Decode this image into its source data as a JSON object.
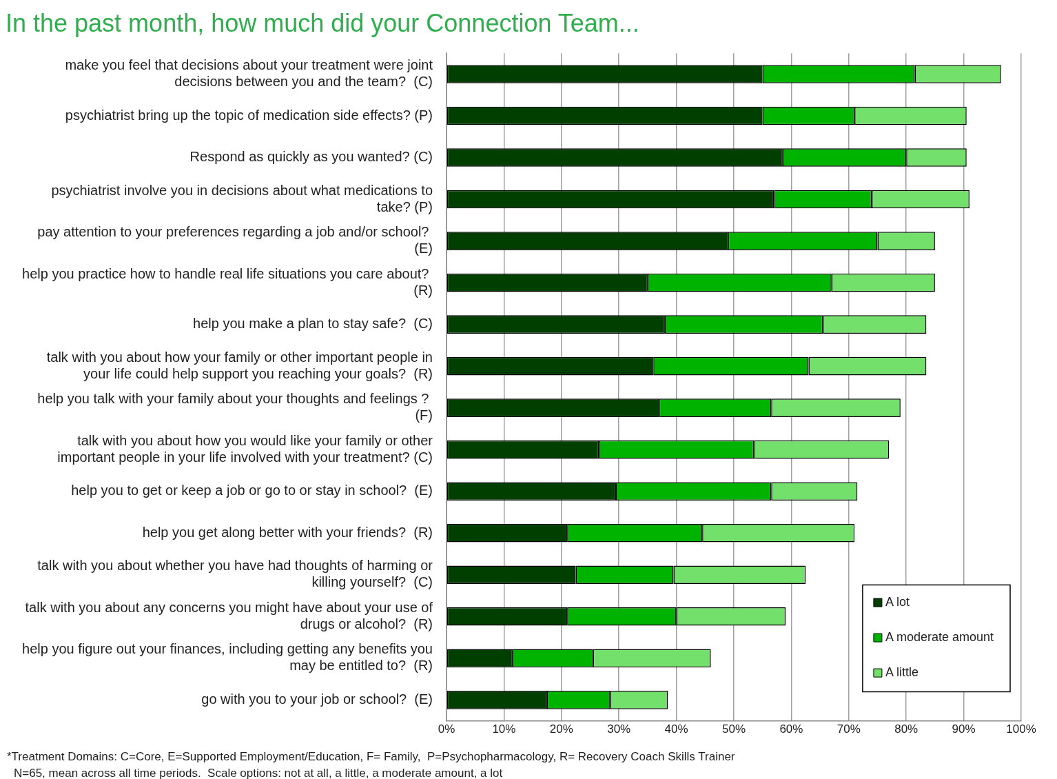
{
  "chart_data": {
    "type": "bar",
    "orientation": "horizontal",
    "stacked": true,
    "title": "In the past month, how much did your Connection Team...",
    "categories": [
      "make you feel that decisions about your treatment were joint decisions between you and the team?  (C)",
      "psychiatrist bring up the topic of medication side effects? (P)",
      "Respond as quickly as you wanted? (C)",
      "psychiatrist involve you in decisions about what medications to take? (P)",
      "pay attention to your preferences regarding a job and/or school?  (E)",
      "help you practice how to handle real life situations you care about?  (R)",
      "help you make a plan to stay safe?  (C)",
      "talk with you about how your family or other important people in your life could help support you reaching your goals?  (R)",
      "help you talk with your family about your thoughts and feelings ?  (F)",
      "talk with you about how you would like your family or other important people in your life involved with your treatment? (C)",
      "help you to get or keep a job or go to or stay in school?  (E)",
      "help you get along better with your friends?  (R)",
      "talk with you about whether you have had thoughts of harming or killing yourself?  (C)",
      "talk with you about any concerns you might have about your use of drugs or alcohol?  (R)",
      "help you figure out your finances, including getting any benefits you may be entitled to?  (R)",
      "go with you to your job or school?  (E)"
    ],
    "series": [
      {
        "name": "A lot",
        "color": "#003f00",
        "values": [
          55,
          55,
          58.5,
          57,
          49,
          35,
          38,
          36,
          37,
          26.5,
          29.5,
          21,
          22.5,
          21,
          11.5,
          17.5
        ]
      },
      {
        "name": "A moderate amount",
        "color": "#00b300",
        "values": [
          26.5,
          16,
          21.5,
          17,
          26,
          32,
          27.5,
          27,
          19.5,
          27,
          27,
          23.5,
          17,
          19,
          14,
          11
        ]
      },
      {
        "name": "A little",
        "color": "#72e06a",
        "values": [
          15,
          19.5,
          10.5,
          17,
          10,
          18,
          18,
          20.5,
          22.5,
          23.5,
          15,
          26.5,
          23,
          19,
          20.5,
          10
        ]
      }
    ],
    "xlim": [
      0,
      100
    ],
    "xticks": [
      {
        "value": 0,
        "label": "0%"
      },
      {
        "value": 10,
        "label": "10%"
      },
      {
        "value": 20,
        "label": "20%"
      },
      {
        "value": 30,
        "label": "30%"
      },
      {
        "value": 40,
        "label": "40%"
      },
      {
        "value": 50,
        "label": "50%"
      },
      {
        "value": 60,
        "label": "60%"
      },
      {
        "value": 70,
        "label": "70%"
      },
      {
        "value": 80,
        "label": "80%"
      },
      {
        "value": 90,
        "label": "90%"
      },
      {
        "value": 100,
        "label": "100%"
      }
    ],
    "grid": "x",
    "legend": "bottom right",
    "annotations": [
      "*Treatment Domains: C=Core, E=Supported Employment/Education, F= Family,  P=Psychopharmacology, R= Recovery Coach Skills Trainer",
      "N=65, mean across all time periods.  Scale options: not at all, a little, a moderate amount, a lot"
    ]
  }
}
